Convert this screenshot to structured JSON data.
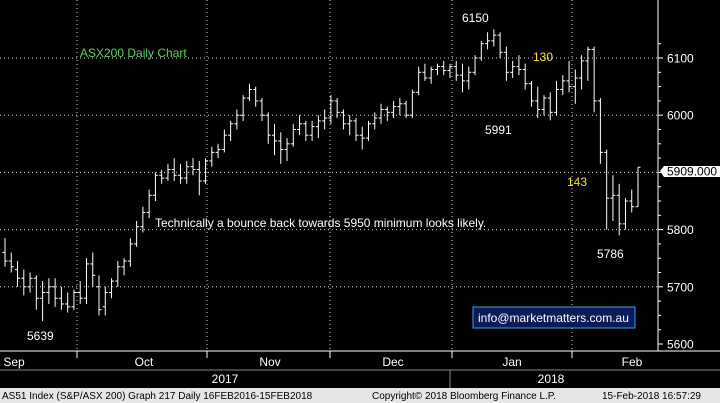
{
  "chart_data": {
    "type": "ohlc",
    "title": "ASX200 Daily Chart",
    "xlabel": "",
    "ylabel": "",
    "ylim": [
      5590,
      6190
    ],
    "y_ticks": [
      5600,
      5700,
      5800,
      5900,
      6000,
      6100
    ],
    "last_price_label": "5909.000",
    "last_price": 5909,
    "grid": true,
    "colors": {
      "background": "#000000",
      "bars": "#ffffff",
      "title": "#5fd35f",
      "annotation_yellow": "#f5e61e",
      "grid": "#d8d8d8",
      "footer_bg": "#e6e6e6",
      "info_box_bg": "#0c1a5a",
      "info_box_border": "#2fa8d8"
    },
    "month_labels": [
      "Sep",
      "Oct",
      "Nov",
      "Dec",
      "Jan",
      "Feb"
    ],
    "year_labels": [
      "2017",
      "2018"
    ],
    "series": [
      {
        "ohlc": [
          [
            5760,
            5785,
            5735,
            5745
          ],
          [
            5745,
            5760,
            5725,
            5735
          ],
          [
            5730,
            5745,
            5700,
            5715
          ],
          [
            5715,
            5730,
            5685,
            5700
          ],
          [
            5700,
            5725,
            5690,
            5715
          ],
          [
            5715,
            5720,
            5660,
            5680
          ],
          [
            5680,
            5710,
            5640,
            5690
          ],
          [
            5690,
            5715,
            5670,
            5700
          ],
          [
            5700,
            5715,
            5665,
            5680
          ],
          [
            5680,
            5700,
            5660,
            5670
          ],
          [
            5670,
            5690,
            5655,
            5665
          ],
          [
            5665,
            5695,
            5660,
            5690
          ],
          [
            5690,
            5710,
            5670,
            5680
          ],
          [
            5680,
            5750,
            5670,
            5740
          ],
          [
            5740,
            5760,
            5700,
            5720
          ],
          [
            5700,
            5720,
            5650,
            5660
          ],
          [
            5665,
            5700,
            5650,
            5690
          ],
          [
            5690,
            5715,
            5680,
            5710
          ],
          [
            5710,
            5745,
            5700,
            5735
          ],
          [
            5735,
            5750,
            5720,
            5745
          ],
          [
            5745,
            5785,
            5735,
            5775
          ],
          [
            5775,
            5815,
            5770,
            5805
          ],
          [
            5805,
            5840,
            5795,
            5830
          ],
          [
            5830,
            5870,
            5820,
            5860
          ],
          [
            5860,
            5900,
            5850,
            5895
          ],
          [
            5895,
            5905,
            5880,
            5890
          ],
          [
            5890,
            5915,
            5885,
            5905
          ],
          [
            5905,
            5925,
            5885,
            5895
          ],
          [
            5895,
            5915,
            5880,
            5890
          ],
          [
            5890,
            5920,
            5880,
            5910
          ],
          [
            5910,
            5925,
            5895,
            5905
          ],
          [
            5905,
            5920,
            5860,
            5885
          ],
          [
            5885,
            5925,
            5880,
            5920
          ],
          [
            5920,
            5945,
            5910,
            5935
          ],
          [
            5935,
            5950,
            5925,
            5940
          ],
          [
            5940,
            5975,
            5935,
            5965
          ],
          [
            5965,
            5990,
            5955,
            5985
          ],
          [
            5985,
            6010,
            5975,
            6000
          ],
          [
            6000,
            6035,
            5990,
            6030
          ],
          [
            6030,
            6055,
            6025,
            6045
          ],
          [
            6045,
            6050,
            6015,
            6025
          ],
          [
            6025,
            6030,
            5990,
            6000
          ],
          [
            6000,
            6005,
            5950,
            5965
          ],
          [
            5965,
            5985,
            5930,
            5955
          ],
          [
            5955,
            5970,
            5915,
            5940
          ],
          [
            5940,
            5960,
            5920,
            5950
          ],
          [
            5950,
            5985,
            5945,
            5975
          ],
          [
            5975,
            6000,
            5965,
            5985
          ],
          [
            5985,
            5990,
            5955,
            5965
          ],
          [
            5965,
            5990,
            5955,
            5980
          ],
          [
            5980,
            6000,
            5960,
            5990
          ],
          [
            5990,
            6010,
            5975,
            5995
          ],
          [
            5995,
            6035,
            5985,
            6025
          ],
          [
            6025,
            6030,
            5995,
            6005
          ],
          [
            6005,
            6010,
            5975,
            5985
          ],
          [
            5985,
            6000,
            5965,
            5990
          ],
          [
            5990,
            5995,
            5955,
            5965
          ],
          [
            5965,
            5980,
            5940,
            5960
          ],
          [
            5960,
            5990,
            5955,
            5985
          ],
          [
            5985,
            6005,
            5975,
            5995
          ],
          [
            5995,
            6020,
            5985,
            6010
          ],
          [
            6010,
            6015,
            5990,
            6005
          ],
          [
            6005,
            6025,
            5995,
            6015
          ],
          [
            6015,
            6030,
            6000,
            6020
          ],
          [
            6020,
            6025,
            5995,
            6000
          ],
          [
            6000,
            6045,
            5995,
            6040
          ],
          [
            6040,
            6085,
            6035,
            6075
          ],
          [
            6075,
            6090,
            6060,
            6065
          ],
          [
            6065,
            6085,
            6055,
            6080
          ],
          [
            6080,
            6090,
            6070,
            6085
          ],
          [
            6085,
            6095,
            6070,
            6078
          ],
          [
            6078,
            6090,
            6065,
            6085
          ],
          [
            6085,
            6095,
            6060,
            6070
          ],
          [
            6070,
            6090,
            6040,
            6060
          ],
          [
            6060,
            6085,
            6045,
            6075
          ],
          [
            6075,
            6105,
            6070,
            6100
          ],
          [
            6100,
            6130,
            6095,
            6125
          ],
          [
            6125,
            6145,
            6115,
            6130
          ],
          [
            6130,
            6150,
            6120,
            6140
          ],
          [
            6140,
            6145,
            6100,
            6110
          ],
          [
            6110,
            6120,
            6060,
            6075
          ],
          [
            6075,
            6095,
            6065,
            6085
          ],
          [
            6085,
            6105,
            6070,
            6080
          ],
          [
            6080,
            6090,
            6045,
            6055
          ],
          [
            6055,
            6060,
            6015,
            6025
          ],
          [
            6025,
            6050,
            5995,
            6010
          ],
          [
            6010,
            6035,
            6000,
            6030
          ],
          [
            6030,
            6040,
            5991,
            6005
          ],
          [
            6005,
            6060,
            6000,
            6045
          ],
          [
            6045,
            6070,
            6035,
            6060
          ],
          [
            6060,
            6095,
            6040,
            6050
          ],
          [
            6050,
            6080,
            6020,
            6065
          ],
          [
            6065,
            6105,
            6045,
            6095
          ],
          [
            6095,
            6120,
            6060,
            6115
          ],
          [
            6115,
            6120,
            6005,
            6025
          ],
          [
            6025,
            6030,
            5915,
            5935
          ],
          [
            5935,
            5940,
            5800,
            5855
          ],
          [
            5855,
            5895,
            5815,
            5860
          ],
          [
            5860,
            5880,
            5790,
            5810
          ],
          [
            5810,
            5855,
            5800,
            5850
          ],
          [
            5850,
            5870,
            5830,
            5840
          ],
          [
            5840,
            5909,
            5840,
            5909
          ]
        ]
      }
    ]
  },
  "annotations": {
    "bounce_note": "Technically a bounce back towards 5950 minimum looks likely.",
    "high_label": "6150",
    "low_sep_label": "5639",
    "low_jan_label": "5991",
    "drop_label": "143",
    "rise_label": "130",
    "low_feb_label": "5786",
    "info_box": "info@marketmatters.com.au"
  },
  "footer": {
    "left": "AS51 Index (S&P/ASX 200) Graph 217  Daily 16FEB2016-15FEB2018",
    "middle": "Copyright© 2018 Bloomberg Finance L.P.",
    "right": "15-Feb-2018 16:57:29"
  }
}
